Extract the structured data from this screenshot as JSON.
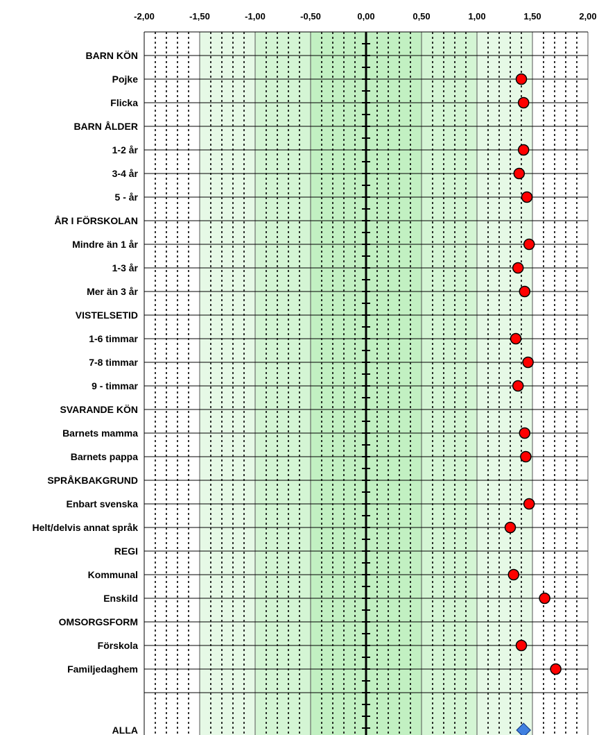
{
  "chart_data": {
    "type": "scatter",
    "title": "",
    "xlabel": "",
    "ylabel": "",
    "xlim": [
      -2,
      2
    ],
    "x_ticks": [
      "-2,00",
      "-1,50",
      "-1,00",
      "-0,50",
      "0,00",
      "0,50",
      "1,00",
      "1,50",
      "2,00"
    ],
    "grid": true,
    "background_bands": [
      {
        "from": -1.5,
        "to": 1.5,
        "color": "#e6f9e6"
      },
      {
        "from": -1.0,
        "to": 1.0,
        "color": "#d4f5d4"
      },
      {
        "from": -0.5,
        "to": 0.5,
        "color": "#c2f0c2"
      }
    ],
    "point_color": "#ff0000",
    "total_color": "#3f7fe0",
    "rows": [
      {
        "label": "BARN KÖN",
        "value": null
      },
      {
        "label": "Pojke",
        "value": 1.4
      },
      {
        "label": "Flicka",
        "value": 1.42
      },
      {
        "label": "BARN ÅLDER",
        "value": null
      },
      {
        "label": "1-2 år",
        "value": 1.42
      },
      {
        "label": "3-4 år",
        "value": 1.38
      },
      {
        "label": "5 - år",
        "value": 1.45
      },
      {
        "label": "ÅR I FÖRSKOLAN",
        "value": null
      },
      {
        "label": "Mindre än 1 år",
        "value": 1.47
      },
      {
        "label": "1-3 år",
        "value": 1.37
      },
      {
        "label": "Mer än 3 år",
        "value": 1.43
      },
      {
        "label": "VISTELSETID",
        "value": null
      },
      {
        "label": "1-6 timmar",
        "value": 1.35
      },
      {
        "label": "7-8 timmar",
        "value": 1.46
      },
      {
        "label": "9 - timmar",
        "value": 1.37
      },
      {
        "label": "SVARANDE KÖN",
        "value": null
      },
      {
        "label": "Barnets mamma",
        "value": 1.43
      },
      {
        "label": "Barnets pappa",
        "value": 1.44
      },
      {
        "label": "SPRÅKBAKGRUND",
        "value": null
      },
      {
        "label": "Enbart svenska",
        "value": 1.47
      },
      {
        "label": "Helt/delvis annat språk",
        "value": 1.3
      },
      {
        "label": "REGI",
        "value": null
      },
      {
        "label": "Kommunal",
        "value": 1.33
      },
      {
        "label": "Enskild",
        "value": 1.61
      },
      {
        "label": "OMSORGSFORM",
        "value": null
      },
      {
        "label": "Förskola",
        "value": 1.4
      },
      {
        "label": "Familjedaghem",
        "value": 1.71
      },
      {
        "label": "",
        "value": null
      }
    ],
    "total": {
      "label": "ALLA",
      "value": 1.42
    }
  }
}
